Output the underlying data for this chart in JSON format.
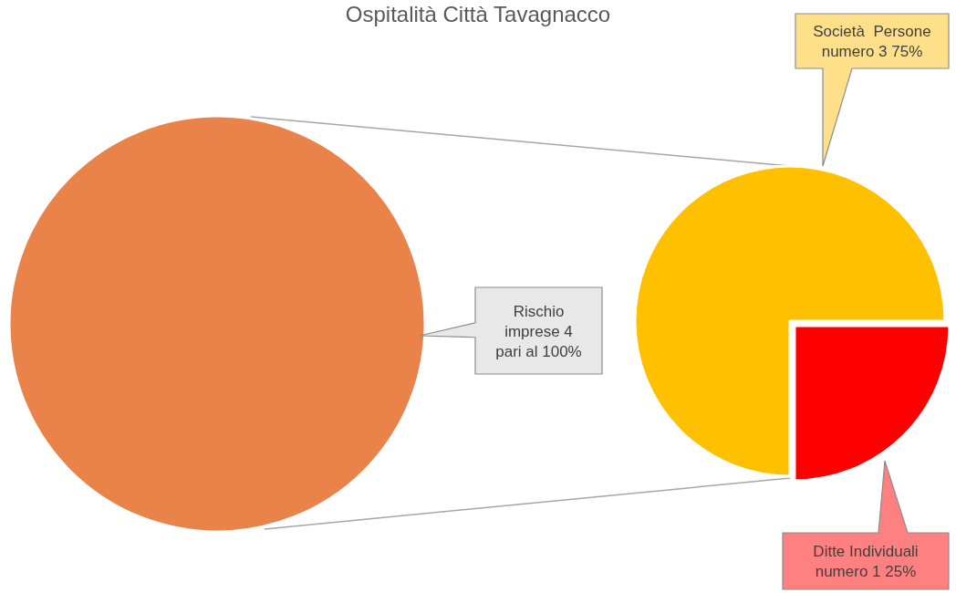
{
  "chart_data": [
    {
      "type": "pie",
      "title": "Ospitalità Città Tavagnacco",
      "categories": [
        "Rischio imprese"
      ],
      "values": [
        4
      ],
      "colors": [
        "#e9834a"
      ],
      "value_labels": [
        "4 pari al 100%"
      ]
    },
    {
      "type": "pie",
      "categories": [
        "Società  Persone",
        "Ditte Individuali"
      ],
      "values": [
        3,
        1
      ],
      "colors": [
        "#ffc000",
        "#ff0000"
      ],
      "value_labels": [
        "numero 3 75%",
        "numero 1 25%"
      ]
    }
  ]
}
